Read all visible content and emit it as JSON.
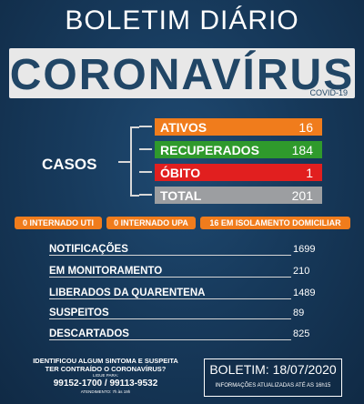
{
  "header": {
    "title": "BOLETIM DIÁRIO",
    "banner": "CORONAVÍRUS",
    "banner_sub": "COVID-19"
  },
  "casos": {
    "label": "CASOS",
    "items": [
      {
        "label": "ATIVOS",
        "value": "16",
        "color": "#f07c1c"
      },
      {
        "label": "RECUPERADOS",
        "value": "184",
        "color": "#2f9a2c"
      },
      {
        "label": "ÓBITO",
        "value": "1",
        "color": "#e11f1f"
      },
      {
        "label": "TOTAL",
        "value": "201",
        "color": "#9c9ea1"
      }
    ]
  },
  "pills": [
    "0 INTERNADO UTI",
    "0 INTERNADO UPA",
    "16 EM ISOLAMENTO DOMICILIAR"
  ],
  "stats": [
    {
      "label": "NOTIFICAÇÕES",
      "value": "1699"
    },
    {
      "label": "EM MONITORAMENTO",
      "value": "210"
    },
    {
      "label": "LIBERADOS DA QUARENTENA",
      "value": "1489"
    },
    {
      "label": "SUSPEITOS",
      "value": "89"
    },
    {
      "label": "DESCARTADOS",
      "value": "825"
    }
  ],
  "footer": {
    "line1": "IDENTIFICOU ALGUM SINTOMA E SUSPEITA",
    "line2": "TER CONTRAÍDO O CORONAVÍRUS?",
    "line3": "LIGUE PARA:",
    "phones": "99152-1700 / 99113-9532",
    "line4": "ATENDIMENTO: 7h às 19h",
    "boletim_date": "BOLETIM: 18/07/2020",
    "boletim_info": "INFORMAÇÕES ATUALIZADAS ATÉ AS 16h15"
  }
}
